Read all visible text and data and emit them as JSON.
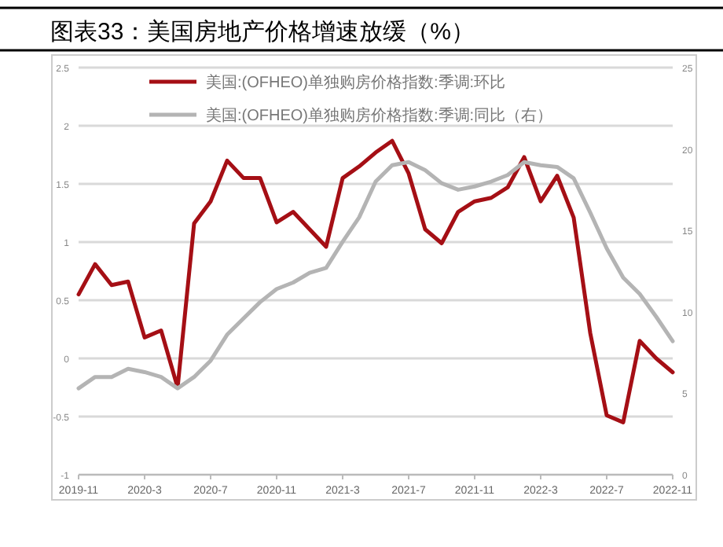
{
  "chart_data": {
    "type": "line",
    "title": "图表33：美国房地产价格增速放缓（%）",
    "categories": [
      "2019-11",
      null,
      null,
      null,
      "2020-3",
      null,
      null,
      null,
      "2020-7",
      null,
      null,
      null,
      "2020-11",
      null,
      null,
      null,
      "2021-3",
      null,
      null,
      null,
      "2021-7",
      null,
      null,
      null,
      "2021-11",
      null,
      null,
      null,
      "2022-3",
      null,
      null,
      null,
      "2022-7",
      null,
      null,
      null,
      "2022-11"
    ],
    "series": [
      {
        "name": "美国:(OFHEO)单独购房价格指数:季调:环比",
        "color": "#a50f15",
        "values": [
          0.55,
          0.81,
          0.63,
          0.66,
          0.18,
          0.24,
          -0.25,
          1.16,
          1.35,
          1.7,
          1.55,
          1.55,
          1.17,
          1.26,
          1.11,
          0.96,
          1.55,
          1.65,
          1.77,
          1.87,
          1.59,
          1.11,
          0.99,
          1.26,
          1.35,
          1.38,
          1.47,
          1.73,
          1.35,
          1.57,
          1.21,
          0.22,
          -0.49,
          -0.55,
          0.15,
          0.0,
          -0.12
        ]
      },
      {
        "name": "美国:(OFHEO)单独购房价格指数:季调:同比（右）",
        "color": "#b4b4b4",
        "axis": "y2",
        "values": [
          5.3,
          6.0,
          6.0,
          6.5,
          6.3,
          6.0,
          5.3,
          6.0,
          7.0,
          8.6,
          9.6,
          10.6,
          11.4,
          11.8,
          12.4,
          12.7,
          14.3,
          15.8,
          18.0,
          19.0,
          19.2,
          18.7,
          17.9,
          17.5,
          17.7,
          18.0,
          18.4,
          19.2,
          19.0,
          18.9,
          18.2,
          16.1,
          13.9,
          12.1,
          11.1,
          9.7,
          8.2
        ]
      }
    ],
    "ylim": [
      -1,
      2.5
    ],
    "yticks": [
      -1,
      -0.5,
      0,
      0.5,
      1,
      1.5,
      2,
      2.5
    ],
    "y2lim": [
      0,
      25
    ],
    "y2ticks": [
      0,
      5,
      10,
      15,
      20,
      25
    ],
    "grid": "y",
    "legend": "top",
    "marker": "none",
    "line_style": "solid"
  }
}
